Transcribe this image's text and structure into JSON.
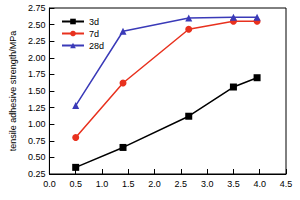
{
  "chart_data": {
    "type": "line",
    "y_label": "tensile adhesive strength/MPa",
    "series": [
      {
        "name": "3d",
        "color": "#000000",
        "marker": "square",
        "x": [
          0.5,
          1.4,
          2.65,
          3.5,
          3.95
        ],
        "values": [
          0.35,
          0.65,
          1.12,
          1.56,
          1.7
        ]
      },
      {
        "name": "7d",
        "color": "#e8311e",
        "marker": "circle",
        "x": [
          0.5,
          1.4,
          2.65,
          3.5,
          3.95
        ],
        "values": [
          0.8,
          1.62,
          2.43,
          2.55,
          2.55
        ]
      },
      {
        "name": "28d",
        "color": "#3a3ab8",
        "marker": "triangle",
        "x": [
          0.5,
          1.4,
          2.65,
          3.5,
          3.95
        ],
        "values": [
          1.28,
          2.4,
          2.6,
          2.61,
          2.61
        ]
      }
    ],
    "xlim": [
      0,
      4.5
    ],
    "xticks": [
      {
        "value": 0,
        "label": "0.0"
      },
      0.5,
      {
        "value": 1,
        "label": "1.0"
      },
      1.5,
      {
        "value": 2,
        "label": "2.0"
      },
      2.5,
      {
        "value": 3,
        "label": "3.0"
      },
      3.5,
      {
        "value": 4,
        "label": "4.0"
      },
      4.5
    ],
    "ylim": [
      0.25,
      2.75
    ],
    "yticks": [
      0.25,
      {
        "value": 0.5,
        "label": "0.50"
      },
      0.75,
      {
        "value": 1,
        "label": "1.00"
      },
      1.25,
      {
        "value": 1.5,
        "label": "1.50"
      },
      1.75,
      {
        "value": 2,
        "label": "2.00"
      },
      2.25,
      {
        "value": 2.5,
        "label": "2.50"
      },
      2.75
    ],
    "grid": false,
    "legend": "upper left"
  }
}
